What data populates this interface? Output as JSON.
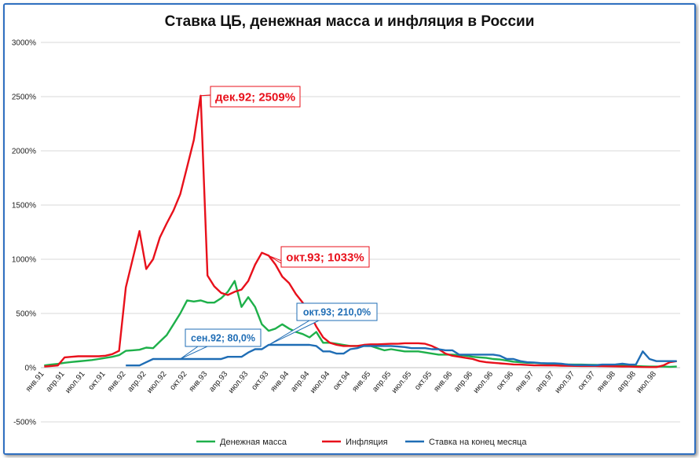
{
  "chart_data": {
    "type": "line",
    "title": "Ставка ЦБ, денежная масса и инфляция в России",
    "xlabel": "",
    "ylabel": "",
    "ylim": [
      -500,
      3000
    ],
    "y_ticks": [
      "-500%",
      "0%",
      "500%",
      "1000%",
      "1500%",
      "2000%",
      "2500%",
      "3000%"
    ],
    "y_tick_values": [
      -500,
      0,
      500,
      1000,
      1500,
      2000,
      2500,
      3000
    ],
    "x": [
      "янв.91",
      "фев.91",
      "мар.91",
      "апр.91",
      "май.91",
      "июн.91",
      "июл.91",
      "авг.91",
      "сен.91",
      "окт.91",
      "ноя.91",
      "дек.91",
      "янв.92",
      "фев.92",
      "мар.92",
      "апр.92",
      "май.92",
      "июн.92",
      "июл.92",
      "авг.92",
      "сен.92",
      "окт.92",
      "ноя.92",
      "дек.92",
      "янв.93",
      "фев.93",
      "мар.93",
      "апр.93",
      "май.93",
      "июн.93",
      "июл.93",
      "авг.93",
      "сен.93",
      "окт.93",
      "ноя.93",
      "дек.93",
      "янв.94",
      "фев.94",
      "мар.94",
      "апр.94",
      "май.94",
      "июн.94",
      "июл.94",
      "авг.94",
      "сен.94",
      "окт.94",
      "ноя.94",
      "дек.94",
      "янв.95",
      "фев.95",
      "мар.95",
      "апр.95",
      "май.95",
      "июн.95",
      "июл.95",
      "авг.95",
      "сен.95",
      "окт.95",
      "ноя.95",
      "дек.95",
      "янв.96",
      "фев.96",
      "мар.96",
      "апр.96",
      "май.96",
      "июн.96",
      "июл.96",
      "авг.96",
      "сен.96",
      "окт.96",
      "ноя.96",
      "дек.96",
      "янв.97",
      "фев.97",
      "мар.97",
      "апр.97",
      "май.97",
      "июн.97",
      "июл.97",
      "авг.97",
      "сен.97",
      "окт.97",
      "ноя.97",
      "дек.97",
      "янв.98",
      "фев.98",
      "мар.98",
      "апр.98",
      "май.98",
      "июн.98",
      "июл.98",
      "авг.98",
      "сен.98",
      "окт.98"
    ],
    "x_tick_labels": [
      "янв.91",
      "апр.91",
      "июл.91",
      "окт.91",
      "янв.92",
      "апр.92",
      "июл.92",
      "окт.92",
      "янв.93",
      "апр.93",
      "июл.93",
      "окт.93",
      "янв.94",
      "апр.94",
      "июл.94",
      "окт.94",
      "янв.95",
      "апр.95",
      "июл.95",
      "окт.95",
      "янв.96",
      "апр.96",
      "июл.96",
      "окт.96",
      "янв.97",
      "апр.97",
      "июл.97",
      "окт.97",
      "янв.98",
      "апр.98",
      "июл.98"
    ],
    "series": [
      {
        "name": "Денежная масса",
        "color": "#1eb04a",
        "values": [
          20,
          28,
          35,
          45,
          52,
          58,
          64,
          70,
          80,
          90,
          100,
          115,
          155,
          160,
          165,
          185,
          180,
          240,
          300,
          400,
          500,
          620,
          610,
          620,
          600,
          600,
          640,
          700,
          800,
          560,
          650,
          560,
          400,
          340,
          360,
          400,
          360,
          330,
          310,
          280,
          330,
          230,
          230,
          220,
          210,
          200,
          200,
          200,
          200,
          180,
          160,
          170,
          160,
          150,
          150,
          150,
          140,
          130,
          120,
          120,
          120,
          115,
          110,
          100,
          95,
          90,
          80,
          75,
          65,
          55,
          50,
          45,
          45,
          40,
          38,
          35,
          32,
          30,
          28,
          28,
          27,
          26,
          25,
          24,
          22,
          20,
          18,
          15,
          12,
          10,
          10,
          10,
          8,
          10
        ]
      },
      {
        "name": "Инфляция",
        "color": "#e8101b",
        "values": [
          10,
          15,
          20,
          95,
          100,
          105,
          105,
          105,
          105,
          110,
          125,
          155,
          740,
          1000,
          1260,
          910,
          1000,
          1200,
          1330,
          1450,
          1600,
          1850,
          2100,
          2509,
          850,
          750,
          690,
          670,
          700,
          720,
          800,
          950,
          1060,
          1033,
          950,
          840,
          780,
          680,
          600,
          500,
          380,
          280,
          230,
          210,
          200,
          200,
          200,
          210,
          215,
          215,
          218,
          220,
          220,
          225,
          225,
          225,
          220,
          200,
          170,
          130,
          110,
          100,
          90,
          80,
          60,
          50,
          45,
          40,
          35,
          30,
          28,
          25,
          22,
          21,
          20,
          20,
          18,
          17,
          16,
          15,
          15,
          15,
          14,
          13,
          12,
          11,
          10,
          8,
          6,
          5,
          5,
          20,
          50,
          60
        ]
      },
      {
        "name": "Ставка на конец месяца",
        "color": "#1f6db5",
        "values": [
          null,
          null,
          null,
          null,
          null,
          null,
          null,
          null,
          null,
          null,
          null,
          null,
          20,
          20,
          20,
          50,
          80,
          80,
          80,
          80,
          80,
          80,
          80,
          80,
          80,
          80,
          80,
          100,
          100,
          100,
          140,
          170,
          170,
          210,
          210,
          210,
          210,
          210,
          210,
          210,
          200,
          150,
          150,
          130,
          130,
          170,
          180,
          200,
          200,
          200,
          200,
          200,
          195,
          190,
          180,
          180,
          180,
          170,
          170,
          160,
          160,
          120,
          120,
          120,
          120,
          120,
          120,
          110,
          80,
          80,
          60,
          50,
          48,
          42,
          40,
          40,
          36,
          28,
          24,
          24,
          24,
          21,
          28,
          28,
          30,
          36,
          28,
          30,
          150,
          80,
          60,
          60,
          60,
          60
        ]
      }
    ],
    "annotations": [
      {
        "text": "дек.92; 2509%",
        "series": "Инфляция",
        "x": "дек.92",
        "y": 2509
      },
      {
        "text": "окт.93; 1033%",
        "series": "Инфляция",
        "x": "окт.93",
        "y": 1033
      },
      {
        "text": "сен.92; 80,0%",
        "series": "Ставка на конец месяца",
        "x": "сен.92",
        "y": 80
      },
      {
        "text": "окт.93; 210,0%",
        "series": "Ставка на конец месяца",
        "x": "окт.93",
        "y": 210
      }
    ],
    "legend_position": "bottom",
    "grid": "horizontal"
  }
}
